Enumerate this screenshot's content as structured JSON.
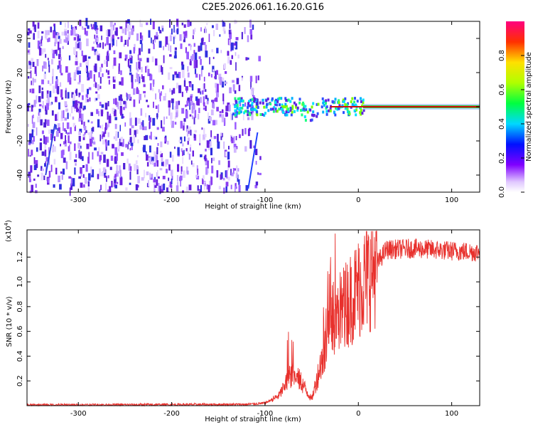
{
  "title": "C2E5.2026.061.16.20.G16",
  "colors": {
    "snr_line": "#e8302c",
    "spectrogram_ridge": "#d01010",
    "axis": "#000000"
  },
  "chart_data": [
    {
      "type": "heatmap",
      "name": "spectrogram",
      "xlabel": "Height of straight line (km)",
      "ylabel": "Frequency (Hz)",
      "xlim": [
        -355,
        130
      ],
      "ylim": [
        -50,
        50
      ],
      "xticks": [
        -300,
        -200,
        -100,
        0,
        100
      ],
      "yticks": [
        -40,
        -20,
        0,
        20,
        40
      ],
      "colorbar": {
        "label": "Normalized spectral amplitude",
        "range": [
          0.0,
          1.0
        ],
        "ticks": [
          "0.0",
          "0.2",
          "0.4",
          "0.6",
          "0.8"
        ],
        "tick_values": [
          0.0,
          0.2,
          0.4,
          0.6,
          0.8
        ]
      }
    },
    {
      "type": "line",
      "name": "snr",
      "xlabel": "Height of straight line (km)",
      "ylabel": "SNR (10 * v/v)",
      "scale_label": "(x10",
      "scale_exponent": "4",
      "scale_close": ")",
      "xlim": [
        -355,
        130
      ],
      "ylim": [
        0,
        1.42
      ],
      "xticks": [
        -300,
        -200,
        -100,
        0,
        100
      ],
      "yticks": [
        0.2,
        0.4,
        0.6,
        0.8,
        1.0,
        1.2
      ],
      "x_keypoints": [
        -355,
        -120,
        -100,
        -85,
        -72,
        -62,
        -50,
        -40,
        -25,
        0,
        20,
        30,
        60,
        100,
        130
      ],
      "y_keypoints": [
        0.005,
        0.01,
        0.02,
        0.08,
        0.25,
        0.2,
        0.05,
        0.35,
        0.7,
        0.95,
        1.15,
        1.26,
        1.27,
        1.25,
        1.24
      ]
    }
  ]
}
